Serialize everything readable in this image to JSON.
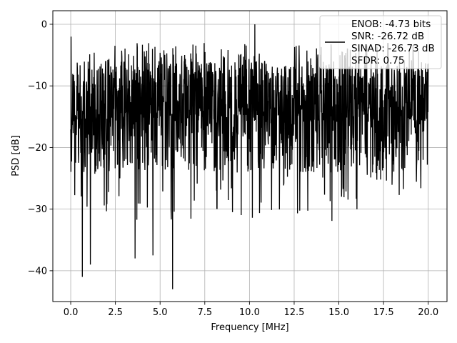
{
  "chart_data": {
    "type": "line",
    "title": "",
    "xlabel": "Frequency [MHz]",
    "ylabel": "PSD [dB]",
    "xlim": [
      -1.0,
      21.05
    ],
    "ylim": [
      -45.0,
      2.2
    ],
    "xticks": [
      0.0,
      2.5,
      5.0,
      7.5,
      10.0,
      12.5,
      15.0,
      17.5,
      20.0
    ],
    "xtick_labels": [
      "0.0",
      "2.5",
      "5.0",
      "7.5",
      "10.0",
      "12.5",
      "15.0",
      "17.5",
      "20.0"
    ],
    "yticks": [
      0,
      -10,
      -20,
      -30,
      -40
    ],
    "ytick_labels": [
      "0",
      "−10",
      "−20",
      "−30",
      "−40"
    ],
    "grid": true,
    "legend": {
      "placement": "top-right",
      "lines": [
        "ENOB: -4.73 bits",
        "SNR: -26.72 dB",
        "SINAD: -26.73 dB",
        "SFDR: 0.75"
      ]
    },
    "series": [
      {
        "color": "#000000",
        "description": "dense noise-like PSD trace from 0 to 20 MHz; values fluctuate roughly between -28 and -2 dB",
        "x_range": [
          0.0,
          20.0
        ],
        "typical_band": [
          -28,
          -2
        ],
        "notable_points": [
          {
            "x": 0.02,
            "y": -2.0
          },
          {
            "x": 0.65,
            "y": -41.0
          },
          {
            "x": 1.1,
            "y": -39.0
          },
          {
            "x": 5.7,
            "y": -43.0
          },
          {
            "x": 10.3,
            "y": 0.0
          },
          {
            "x": 3.6,
            "y": -38.0
          },
          {
            "x": 4.6,
            "y": -37.5
          }
        ]
      }
    ]
  }
}
